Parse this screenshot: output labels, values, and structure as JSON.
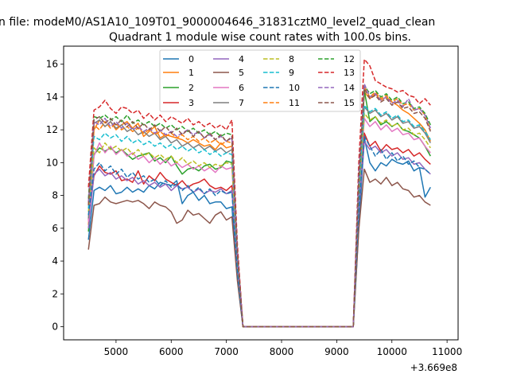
{
  "figure": {
    "suptitle": "n file: modeM0/AS1A10_109T01_9000004646_31831cztM0_level2_quad_clean"
  },
  "chart_data": {
    "type": "line",
    "title": "Quadrant 1 module wise count rates with 100.0s bins.",
    "xlabel": "",
    "ylabel": "",
    "x_offset_label": "+3.669e8",
    "xlim": [
      4050,
      11200
    ],
    "ylim": [
      -0.8,
      17.1
    ],
    "x_ticks": [
      5000,
      6000,
      7000,
      8000,
      9000,
      10000,
      11000
    ],
    "y_ticks": [
      0,
      2,
      4,
      6,
      8,
      10,
      12,
      14,
      16
    ],
    "legend_placement": "upper-center",
    "x": [
      4500,
      4600,
      4700,
      4800,
      4900,
      5000,
      5100,
      5200,
      5300,
      5400,
      5500,
      5600,
      5700,
      5800,
      5900,
      6000,
      6100,
      6200,
      6300,
      6400,
      6500,
      6600,
      6700,
      6800,
      6900,
      7000,
      7100,
      7200,
      7300,
      7400,
      7500,
      7600,
      7700,
      7800,
      7900,
      8000,
      8100,
      8200,
      8300,
      8400,
      8500,
      8600,
      8700,
      8800,
      8900,
      9000,
      9100,
      9200,
      9300,
      9400,
      9500,
      9600,
      9700,
      9800,
      9900,
      10000,
      10100,
      10200,
      10300,
      10400,
      10500,
      10600,
      10700
    ],
    "series": [
      {
        "name": "0",
        "color": "#1f77b4",
        "dash": "solid",
        "values": [
          5.3,
          8.3,
          8.5,
          8.3,
          8.6,
          8.1,
          8.2,
          8.5,
          8.2,
          8.4,
          8.2,
          8.6,
          8.4,
          8.8,
          8.7,
          8.6,
          8.9,
          7.5,
          8.0,
          8.2,
          7.7,
          8.0,
          7.5,
          7.6,
          7.6,
          7.2,
          7.3,
          3.0,
          0.0,
          0.0,
          0.0,
          0.0,
          0.0,
          0.0,
          0.0,
          0.0,
          0.0,
          0.0,
          0.0,
          0.0,
          0.0,
          0.0,
          0.0,
          0.0,
          0.0,
          0.0,
          0.0,
          0.0,
          0.0,
          6.0,
          11.5,
          10.0,
          9.5,
          10.0,
          9.8,
          10.2,
          10.0,
          9.9,
          10.1,
          9.5,
          9.7,
          7.9,
          8.5
        ]
      },
      {
        "name": "1",
        "color": "#ff7f0e",
        "dash": "solid",
        "values": [
          6.2,
          12.0,
          12.6,
          12.2,
          12.5,
          12.0,
          12.3,
          12.5,
          12.1,
          12.4,
          11.6,
          11.9,
          12.2,
          11.5,
          11.7,
          11.6,
          11.5,
          11.4,
          11.2,
          11.4,
          11.2,
          11.0,
          11.1,
          10.8,
          11.2,
          10.9,
          11.0,
          4.0,
          0.0,
          0.0,
          0.0,
          0.0,
          0.0,
          0.0,
          0.0,
          0.0,
          0.0,
          0.0,
          0.0,
          0.0,
          0.0,
          0.0,
          0.0,
          0.0,
          0.0,
          0.0,
          0.0,
          0.0,
          0.0,
          8.5,
          14.3,
          13.9,
          14.2,
          13.8,
          14.0,
          13.7,
          13.5,
          13.2,
          13.0,
          12.7,
          12.4,
          12.0,
          11.3
        ]
      },
      {
        "name": "2",
        "color": "#2ca02c",
        "dash": "solid",
        "values": [
          5.8,
          10.5,
          10.9,
          10.7,
          10.9,
          10.6,
          10.8,
          10.5,
          10.2,
          10.4,
          10.5,
          10.6,
          10.1,
          10.3,
          10.0,
          10.4,
          9.8,
          9.3,
          9.6,
          9.7,
          9.5,
          9.8,
          9.9,
          9.6,
          9.7,
          10.1,
          10.0,
          4.0,
          0.0,
          0.0,
          0.0,
          0.0,
          0.0,
          0.0,
          0.0,
          0.0,
          0.0,
          0.0,
          0.0,
          0.0,
          0.0,
          0.0,
          0.0,
          0.0,
          0.0,
          0.0,
          0.0,
          0.0,
          0.0,
          8.0,
          14.4,
          12.5,
          12.8,
          12.3,
          12.5,
          12.2,
          12.4,
          12.0,
          11.9,
          11.7,
          11.5,
          11.0,
          10.4
        ]
      },
      {
        "name": "3",
        "color": "#d62728",
        "dash": "solid",
        "values": [
          6.5,
          9.2,
          9.8,
          9.4,
          9.3,
          9.5,
          8.9,
          9.0,
          8.8,
          9.5,
          8.7,
          9.2,
          8.9,
          9.4,
          9.0,
          8.8,
          8.6,
          8.9,
          8.5,
          8.7,
          8.8,
          9.0,
          8.6,
          8.4,
          8.5,
          8.3,
          8.6,
          3.5,
          0.0,
          0.0,
          0.0,
          0.0,
          0.0,
          0.0,
          0.0,
          0.0,
          0.0,
          0.0,
          0.0,
          0.0,
          0.0,
          0.0,
          0.0,
          0.0,
          0.0,
          0.0,
          0.0,
          0.0,
          0.0,
          7.5,
          11.8,
          11.0,
          11.3,
          10.7,
          11.1,
          10.8,
          10.9,
          10.6,
          10.8,
          10.4,
          10.6,
          10.2,
          9.9
        ]
      },
      {
        "name": "4",
        "color": "#9467bd",
        "dash": "solid",
        "values": [
          6.0,
          9.3,
          9.6,
          9.2,
          9.4,
          9.0,
          9.2,
          8.9,
          9.1,
          8.7,
          8.9,
          8.6,
          8.8,
          8.5,
          8.7,
          8.3,
          8.6,
          8.4,
          8.5,
          8.2,
          8.4,
          8.1,
          8.3,
          8.2,
          8.4,
          8.1,
          8.3,
          3.4,
          0.0,
          0.0,
          0.0,
          0.0,
          0.0,
          0.0,
          0.0,
          0.0,
          0.0,
          0.0,
          0.0,
          0.0,
          0.0,
          0.0,
          0.0,
          0.0,
          0.0,
          0.0,
          0.0,
          0.0,
          0.0,
          7.0,
          11.3,
          10.8,
          11.0,
          10.6,
          10.8,
          10.4,
          10.6,
          10.2,
          10.3,
          9.9,
          10.0,
          9.6,
          9.3
        ]
      },
      {
        "name": "5",
        "color": "#8c564b",
        "dash": "solid",
        "values": [
          4.7,
          7.4,
          7.5,
          7.9,
          7.6,
          7.5,
          7.6,
          7.7,
          7.6,
          7.7,
          7.5,
          7.2,
          7.6,
          7.4,
          7.3,
          7.0,
          6.3,
          6.5,
          7.1,
          6.8,
          6.9,
          6.6,
          6.3,
          6.8,
          7.0,
          6.5,
          6.7,
          2.8,
          0.0,
          0.0,
          0.0,
          0.0,
          0.0,
          0.0,
          0.0,
          0.0,
          0.0,
          0.0,
          0.0,
          0.0,
          0.0,
          0.0,
          0.0,
          0.0,
          0.0,
          0.0,
          0.0,
          0.0,
          0.0,
          5.9,
          9.6,
          8.8,
          9.0,
          8.7,
          9.1,
          8.6,
          8.8,
          8.4,
          8.3,
          7.9,
          8.0,
          7.6,
          7.4
        ]
      },
      {
        "name": "6",
        "color": "#e377c2",
        "dash": "solid",
        "values": [
          6.4,
          10.4,
          11.2,
          10.6,
          11.0,
          10.5,
          10.8,
          10.4,
          10.6,
          10.2,
          10.4,
          10.0,
          10.3,
          9.9,
          10.2,
          9.8,
          10.0,
          9.7,
          9.9,
          9.6,
          9.8,
          9.5,
          9.7,
          9.4,
          9.8,
          9.6,
          9.7,
          3.9,
          0.0,
          0.0,
          0.0,
          0.0,
          0.0,
          0.0,
          0.0,
          0.0,
          0.0,
          0.0,
          0.0,
          0.0,
          0.0,
          0.0,
          0.0,
          0.0,
          0.0,
          0.0,
          0.0,
          0.0,
          0.0,
          7.8,
          12.7,
          12.2,
          12.5,
          12.0,
          12.3,
          11.9,
          12.1,
          11.7,
          11.8,
          11.4,
          11.5,
          11.0,
          10.6
        ]
      },
      {
        "name": "7",
        "color": "#7f7f7f",
        "dash": "solid",
        "values": [
          6.6,
          12.4,
          12.6,
          12.2,
          12.5,
          12.1,
          12.3,
          11.9,
          12.1,
          11.7,
          11.9,
          11.6,
          11.8,
          11.4,
          11.6,
          11.2,
          11.4,
          11.0,
          11.2,
          10.9,
          11.1,
          10.8,
          11.0,
          10.7,
          10.9,
          10.6,
          10.8,
          4.2,
          0.0,
          0.0,
          0.0,
          0.0,
          0.0,
          0.0,
          0.0,
          0.0,
          0.0,
          0.0,
          0.0,
          0.0,
          0.0,
          0.0,
          0.0,
          0.0,
          0.0,
          0.0,
          0.0,
          0.0,
          0.0,
          8.3,
          13.4,
          13.0,
          13.2,
          12.8,
          13.0,
          12.6,
          12.8,
          12.4,
          12.5,
          12.1,
          12.2,
          11.8,
          11.2
        ]
      },
      {
        "name": "8",
        "color": "#bcbd22",
        "dash": "dashed",
        "values": [
          7.0,
          10.9,
          10.6,
          11.2,
          10.8,
          11.0,
          10.7,
          10.9,
          10.5,
          10.8,
          10.4,
          10.6,
          10.3,
          10.5,
          10.2,
          10.4,
          10.0,
          10.3,
          9.9,
          10.1,
          9.8,
          10.0,
          9.7,
          9.9,
          9.8,
          10.0,
          9.9,
          4.0,
          0.0,
          0.0,
          0.0,
          0.0,
          0.0,
          0.0,
          0.0,
          0.0,
          0.0,
          0.0,
          0.0,
          0.0,
          0.0,
          0.0,
          0.0,
          0.0,
          0.0,
          0.0,
          0.0,
          0.0,
          0.0,
          8.0,
          13.0,
          12.6,
          12.8,
          12.4,
          12.6,
          12.2,
          12.4,
          12.0,
          12.1,
          11.7,
          11.8,
          11.4,
          10.9
        ]
      },
      {
        "name": "9",
        "color": "#17becf",
        "dash": "dashed",
        "values": [
          7.2,
          11.6,
          11.4,
          11.8,
          11.5,
          11.7,
          11.3,
          11.6,
          11.2,
          11.4,
          11.1,
          11.3,
          11.0,
          11.2,
          10.9,
          11.1,
          10.8,
          11.0,
          10.7,
          10.9,
          10.6,
          10.8,
          10.5,
          10.7,
          10.4,
          10.6,
          10.5,
          4.1,
          0.0,
          0.0,
          0.0,
          0.0,
          0.0,
          0.0,
          0.0,
          0.0,
          0.0,
          0.0,
          0.0,
          0.0,
          0.0,
          0.0,
          0.0,
          0.0,
          0.0,
          0.0,
          0.0,
          0.0,
          0.0,
          8.2,
          13.5,
          13.1,
          13.3,
          12.9,
          13.1,
          12.7,
          12.9,
          12.5,
          12.6,
          12.2,
          12.3,
          11.9,
          11.4
        ]
      },
      {
        "name": "10",
        "color": "#1f77b4",
        "dash": "dashed",
        "values": [
          6.8,
          9.6,
          10.0,
          9.5,
          9.8,
          9.3,
          9.6,
          9.1,
          9.4,
          9.0,
          9.2,
          8.8,
          9.0,
          8.6,
          8.9,
          8.5,
          8.7,
          8.3,
          8.6,
          8.2,
          8.5,
          8.1,
          8.4,
          8.0,
          8.3,
          8.1,
          8.2,
          3.3,
          0.0,
          0.0,
          0.0,
          0.0,
          0.0,
          0.0,
          0.0,
          0.0,
          0.0,
          0.0,
          0.0,
          0.0,
          0.0,
          0.0,
          0.0,
          0.0,
          0.0,
          0.0,
          0.0,
          0.0,
          0.0,
          7.2,
          11.6,
          11.0,
          10.4,
          10.8,
          10.2,
          10.6,
          10.1,
          10.4,
          9.9,
          10.1,
          9.7,
          9.6,
          9.3
        ]
      },
      {
        "name": "11",
        "color": "#ff7f0e",
        "dash": "dashed",
        "values": [
          7.5,
          12.3,
          12.0,
          12.5,
          12.1,
          12.4,
          12.0,
          12.2,
          11.9,
          12.1,
          11.8,
          12.0,
          11.7,
          11.9,
          11.6,
          11.8,
          11.5,
          11.7,
          11.4,
          11.6,
          11.3,
          11.5,
          11.2,
          11.4,
          11.1,
          11.3,
          11.2,
          4.4,
          0.0,
          0.0,
          0.0,
          0.0,
          0.0,
          0.0,
          0.0,
          0.0,
          0.0,
          0.0,
          0.0,
          0.0,
          0.0,
          0.0,
          0.0,
          0.0,
          0.0,
          0.0,
          0.0,
          0.0,
          0.0,
          8.8,
          14.6,
          14.0,
          14.3,
          13.9,
          14.1,
          13.7,
          13.9,
          13.5,
          13.6,
          13.2,
          13.3,
          12.9,
          12.0
        ]
      },
      {
        "name": "12",
        "color": "#2ca02c",
        "dash": "dashed",
        "values": [
          7.8,
          12.8,
          12.7,
          12.9,
          12.6,
          12.8,
          12.5,
          12.9,
          12.4,
          12.6,
          12.3,
          12.5,
          12.2,
          12.4,
          12.1,
          12.3,
          12.0,
          12.2,
          11.9,
          12.1,
          11.8,
          12.0,
          11.7,
          11.9,
          11.6,
          11.8,
          11.7,
          4.6,
          0.0,
          0.0,
          0.0,
          0.0,
          0.0,
          0.0,
          0.0,
          0.0,
          0.0,
          0.0,
          0.0,
          0.0,
          0.0,
          0.0,
          0.0,
          0.0,
          0.0,
          0.0,
          0.0,
          0.0,
          0.0,
          9.0,
          14.7,
          14.2,
          14.4,
          14.0,
          14.2,
          13.8,
          14.0,
          13.6,
          13.7,
          13.3,
          13.4,
          13.0,
          12.3
        ]
      },
      {
        "name": "13",
        "color": "#d62728",
        "dash": "dashed",
        "values": [
          8.5,
          13.2,
          13.4,
          13.8,
          13.3,
          13.0,
          13.4,
          13.3,
          13.0,
          13.2,
          12.7,
          13.0,
          12.6,
          12.9,
          12.5,
          12.8,
          12.6,
          12.4,
          12.7,
          12.3,
          12.5,
          12.2,
          12.4,
          12.1,
          12.3,
          12.0,
          12.6,
          5.0,
          0.0,
          0.0,
          0.0,
          0.0,
          0.0,
          0.0,
          0.0,
          0.0,
          0.0,
          0.0,
          0.0,
          0.0,
          0.0,
          0.0,
          0.0,
          0.0,
          0.0,
          0.0,
          0.0,
          0.0,
          0.0,
          10.0,
          16.3,
          15.9,
          15.0,
          14.8,
          14.6,
          14.5,
          14.3,
          14.4,
          14.1,
          14.0,
          13.6,
          13.9,
          13.5
        ]
      },
      {
        "name": "14",
        "color": "#9467bd",
        "dash": "dashed",
        "values": [
          7.6,
          12.5,
          12.3,
          12.7,
          12.2,
          12.5,
          12.1,
          12.4,
          12.0,
          12.2,
          11.9,
          12.1,
          11.8,
          12.0,
          11.7,
          11.9,
          11.6,
          11.8,
          12.0,
          11.7,
          11.9,
          11.5,
          11.7,
          11.4,
          11.6,
          11.3,
          11.5,
          4.5,
          0.0,
          0.0,
          0.0,
          0.0,
          0.0,
          0.0,
          0.0,
          0.0,
          0.0,
          0.0,
          0.0,
          0.0,
          0.0,
          0.0,
          0.0,
          0.0,
          0.0,
          0.0,
          0.0,
          0.0,
          0.0,
          9.2,
          14.8,
          14.0,
          14.2,
          13.8,
          14.0,
          13.6,
          13.8,
          13.4,
          13.9,
          13.2,
          13.3,
          12.9,
          12.1
        ]
      },
      {
        "name": "15",
        "color": "#8c564b",
        "dash": "dashed",
        "values": [
          7.4,
          12.6,
          12.8,
          12.4,
          12.7,
          12.3,
          12.6,
          12.2,
          12.5,
          12.1,
          12.4,
          12.0,
          12.3,
          11.9,
          12.2,
          11.8,
          12.1,
          11.7,
          12.0,
          11.6,
          11.9,
          11.5,
          11.8,
          11.4,
          11.7,
          11.3,
          11.6,
          4.5,
          0.0,
          0.0,
          0.0,
          0.0,
          0.0,
          0.0,
          0.0,
          0.0,
          0.0,
          0.0,
          0.0,
          0.0,
          0.0,
          0.0,
          0.0,
          0.0,
          0.0,
          0.0,
          0.0,
          0.0,
          0.0,
          9.0,
          14.5,
          13.9,
          14.1,
          13.7,
          13.9,
          13.5,
          13.7,
          13.3,
          13.4,
          13.0,
          13.1,
          12.7,
          11.9
        ]
      }
    ]
  }
}
